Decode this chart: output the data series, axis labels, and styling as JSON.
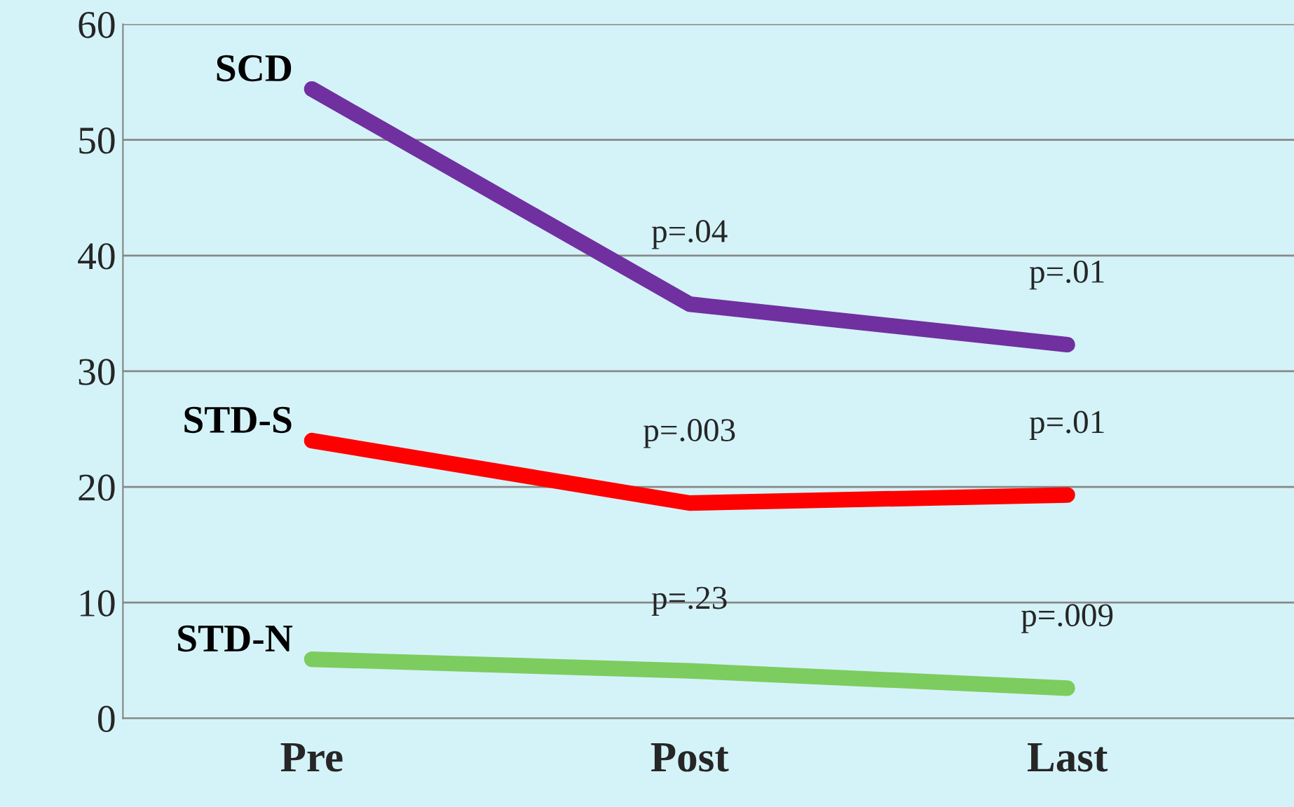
{
  "chart_data": {
    "type": "line",
    "categories": [
      "Pre",
      "Post",
      "Last"
    ],
    "series": [
      {
        "name": "SCD",
        "color": "#7030a0",
        "values": [
          54.4,
          35.8,
          32.3
        ]
      },
      {
        "name": "STD-S",
        "color": "#ff0000",
        "values": [
          24.0,
          18.6,
          19.3
        ]
      },
      {
        "name": "STD-N",
        "color": "#7dcc5f",
        "values": [
          5.1,
          4.1,
          2.6
        ]
      }
    ],
    "ylim": [
      0,
      60
    ],
    "yticks": [
      0,
      10,
      20,
      30,
      40,
      50,
      60
    ],
    "grid": "y",
    "legend": false,
    "line_style": "solid",
    "annotations": [
      "p=.04",
      "p=.01",
      "p=.003",
      "p=.01",
      "p=.23",
      "p=.009"
    ]
  }
}
